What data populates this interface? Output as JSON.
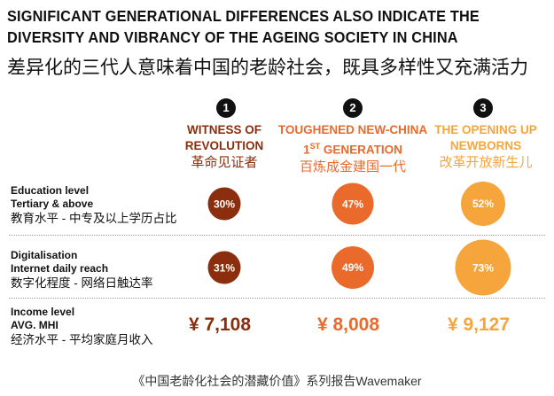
{
  "title": {
    "line1": "SIGNIFICANT GENERATIONAL DIFFERENCES ALSO INDICATE THE",
    "line2": "DIVERSITY AND VIBRANCY OF THE AGEING SOCIETY IN CHINA",
    "cn": "差异化的三代人意味着中国的老龄社会，既具多样性又充满活力"
  },
  "colors": {
    "gen1": "#8b2e0e",
    "gen2": "#ea6a2c",
    "gen3": "#f5a53c"
  },
  "generations": [
    {
      "num": "1",
      "en1": "WITNESS OF",
      "en2": "REVOLUTION",
      "cn": "革命见证者"
    },
    {
      "num": "2",
      "en1": "TOUGHENED NEW-CHINA",
      "en2a": "1",
      "en2sup": "ST",
      "en2b": " GENERATION",
      "cn": "百炼成金建国一代"
    },
    {
      "num": "3",
      "en1": "THE OPENING UP",
      "en2": "NEWBORNS",
      "cn": "改革开放新生儿"
    }
  ],
  "rows": [
    {
      "l1": "Education level",
      "l2": "Tertiary & above",
      "cn": "教育水平 - 中专及以上学历占比",
      "values": [
        "30%",
        "47%",
        "52%"
      ],
      "pct": [
        30,
        47,
        52
      ]
    },
    {
      "l1": "Digitalisation",
      "l2": "Internet daily reach",
      "cn": "数字化程度 - 网络日触达率",
      "values": [
        "31%",
        "49%",
        "73%"
      ],
      "pct": [
        31,
        49,
        73
      ]
    },
    {
      "l1": "Income level",
      "l2": "AVG. MHI",
      "cn": "经济水平 - 平均家庭月收入",
      "values": [
        "¥ 7,108",
        "¥ 8,008",
        "¥ 9,127"
      ]
    }
  ],
  "caption": "《中国老龄化社会的潜藏价值》系列报告Wavemaker"
}
